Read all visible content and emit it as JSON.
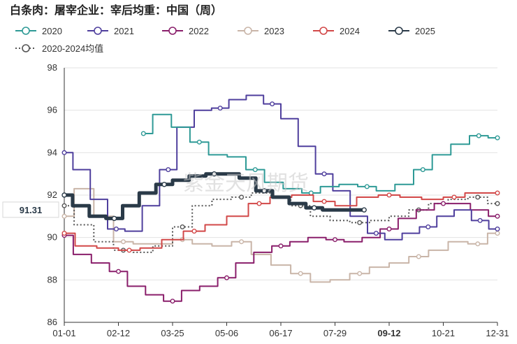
{
  "chart_data": {
    "type": "line",
    "title": "白条肉：屠宰企业：宰后均重：中国（周）",
    "xlabel": "",
    "ylabel": "",
    "ylim": [
      86,
      98
    ],
    "yticks": [
      86,
      88,
      90,
      92,
      94,
      96,
      98
    ],
    "xticks": [
      "01-01",
      "02-12",
      "03-25",
      "05-06",
      "06-17",
      "07-29",
      "09-12",
      "10-21",
      "12-31"
    ],
    "highlight_xtick": "09-12",
    "grid": "horizontal",
    "legend_position": "top-left",
    "watermark": "紫金天风期货",
    "callout": {
      "label": "91.31",
      "value": 91.31,
      "series": "2025"
    },
    "series": [
      {
        "name": "2020",
        "color": "#2e9a96",
        "points": [
          [
            0,
            94.9
          ],
          [
            1,
            95.8
          ],
          [
            2,
            95.2
          ],
          [
            3,
            94.5
          ],
          [
            4,
            93.9
          ],
          [
            5,
            93.8
          ],
          [
            6,
            93.2
          ],
          [
            7,
            92.6
          ],
          [
            8,
            92.3
          ],
          [
            9,
            92.1
          ],
          [
            10,
            92.4
          ],
          [
            11,
            92.5
          ],
          [
            12,
            92.4
          ],
          [
            13,
            92.2
          ],
          [
            14,
            92.5
          ],
          [
            15,
            93.2
          ],
          [
            16,
            93.9
          ],
          [
            17,
            94.4
          ],
          [
            18,
            94.8
          ],
          [
            19,
            94.7
          ]
        ],
        "x_start": 9.5,
        "x_end": 52
      },
      {
        "name": "2021",
        "color": "#4f3f9d",
        "points": [
          [
            0,
            94.0
          ],
          [
            1,
            93.2
          ],
          [
            2,
            91.8
          ],
          [
            3,
            90.4
          ],
          [
            4,
            90.3
          ],
          [
            5,
            91.5
          ],
          [
            6,
            93.2
          ],
          [
            7,
            95.2
          ],
          [
            8,
            96.0
          ],
          [
            9,
            96.1
          ],
          [
            10,
            96.5
          ],
          [
            11,
            96.7
          ],
          [
            12,
            96.3
          ],
          [
            13,
            95.6
          ],
          [
            14,
            94.3
          ],
          [
            15,
            93.0
          ],
          [
            16,
            92.2
          ],
          [
            17,
            91.0
          ],
          [
            18,
            90.2
          ],
          [
            19,
            89.9
          ],
          [
            20,
            90.2
          ],
          [
            21,
            90.5
          ],
          [
            22,
            91.0
          ],
          [
            23,
            91.3
          ],
          [
            24,
            90.8
          ],
          [
            25,
            90.4
          ]
        ],
        "x_start": 0,
        "x_end": 52
      },
      {
        "name": "2022",
        "color": "#8a1f6b",
        "points": [
          [
            0,
            90.1
          ],
          [
            1,
            89.2
          ],
          [
            2,
            88.8
          ],
          [
            3,
            88.4
          ],
          [
            4,
            87.7
          ],
          [
            5,
            87.3
          ],
          [
            6,
            87.0
          ],
          [
            7,
            87.5
          ],
          [
            8,
            87.7
          ],
          [
            9,
            88.1
          ],
          [
            10,
            88.8
          ],
          [
            11,
            89.3
          ],
          [
            12,
            89.6
          ],
          [
            13,
            89.8
          ],
          [
            14,
            90.0
          ],
          [
            15,
            89.9
          ],
          [
            16,
            89.8
          ],
          [
            17,
            90.0
          ],
          [
            18,
            90.4
          ],
          [
            19,
            90.9
          ],
          [
            20,
            91.3
          ],
          [
            21,
            91.6
          ],
          [
            22,
            91.6
          ],
          [
            23,
            91.3
          ],
          [
            24,
            91.0
          ]
        ],
        "x_start": 0,
        "x_end": 52
      },
      {
        "name": "2023",
        "color": "#c9b5a8",
        "points": [
          [
            0,
            91.0
          ],
          [
            1,
            92.3
          ],
          [
            2,
            91.0
          ],
          [
            3,
            89.8
          ],
          [
            4,
            89.7
          ],
          [
            5,
            89.7
          ],
          [
            6,
            89.9
          ],
          [
            7,
            89.7
          ],
          [
            8,
            89.6
          ],
          [
            9,
            89.8
          ],
          [
            10,
            89.2
          ],
          [
            11,
            88.7
          ],
          [
            12,
            88.3
          ],
          [
            13,
            87.9
          ],
          [
            14,
            88.0
          ],
          [
            15,
            88.3
          ],
          [
            16,
            88.6
          ],
          [
            17,
            88.8
          ],
          [
            18,
            89.1
          ],
          [
            19,
            89.4
          ],
          [
            20,
            89.8
          ],
          [
            21,
            89.7
          ],
          [
            22,
            90.2
          ]
        ],
        "x_start": 0,
        "x_end": 52
      },
      {
        "name": "2024",
        "color": "#d24848",
        "points": [
          [
            0,
            90.2
          ],
          [
            1,
            89.6
          ],
          [
            2,
            89.5
          ],
          [
            3,
            89.4
          ],
          [
            4,
            89.5
          ],
          [
            5,
            89.9
          ],
          [
            6,
            90.3
          ],
          [
            7,
            90.6
          ],
          [
            8,
            91.0
          ],
          [
            9,
            91.6
          ],
          [
            10,
            91.9
          ],
          [
            11,
            92.0
          ],
          [
            12,
            91.7
          ],
          [
            13,
            91.5
          ],
          [
            14,
            91.9
          ],
          [
            15,
            92.0
          ],
          [
            16,
            91.9
          ],
          [
            17,
            91.8
          ],
          [
            18,
            91.9
          ],
          [
            19,
            92.1
          ],
          [
            20,
            92.1
          ]
        ],
        "x_start": 0,
        "x_end": 52
      },
      {
        "name": "2025",
        "color": "#2a3a48",
        "bold": true,
        "points": [
          [
            0,
            92.0
          ],
          [
            1,
            91.5
          ],
          [
            2,
            91.0
          ],
          [
            3,
            90.9
          ],
          [
            4,
            91.5
          ],
          [
            5,
            92.1
          ],
          [
            6,
            92.5
          ],
          [
            7,
            92.7
          ],
          [
            8,
            92.9
          ],
          [
            9,
            93.0
          ],
          [
            10,
            93.0
          ],
          [
            11,
            92.8
          ],
          [
            12,
            92.2
          ],
          [
            13,
            91.9
          ],
          [
            14,
            91.6
          ],
          [
            15,
            91.4
          ],
          [
            16,
            91.3
          ],
          [
            17,
            91.3
          ],
          [
            18,
            91.3
          ]
        ],
        "x_start": 0,
        "x_end": 36
      },
      {
        "name": "2020-2024均值",
        "color": "#555555",
        "dotted": true,
        "points": [
          [
            0,
            91.5
          ],
          [
            1,
            90.6
          ],
          [
            2,
            89.8
          ],
          [
            3,
            89.4
          ],
          [
            4,
            89.3
          ],
          [
            5,
            89.6
          ],
          [
            6,
            90.5
          ],
          [
            7,
            91.5
          ],
          [
            8,
            91.8
          ],
          [
            9,
            91.9
          ],
          [
            10,
            92.1
          ],
          [
            11,
            91.9
          ],
          [
            12,
            91.5
          ],
          [
            13,
            91.0
          ],
          [
            14,
            90.8
          ],
          [
            15,
            90.7
          ],
          [
            16,
            90.8
          ],
          [
            17,
            91.0
          ],
          [
            18,
            91.3
          ],
          [
            19,
            91.6
          ],
          [
            20,
            91.8
          ],
          [
            21,
            91.9
          ],
          [
            22,
            91.6
          ]
        ],
        "x_start": 0,
        "x_end": 52
      }
    ]
  }
}
